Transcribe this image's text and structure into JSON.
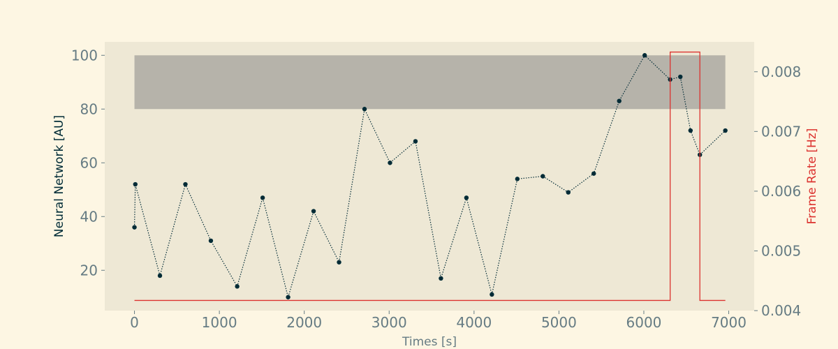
{
  "chart_data": {
    "type": "line",
    "title": "",
    "xlabel": "Times [s]",
    "ylabel_left": "Neural Network [AU]",
    "ylabel_right": "Frame Rate [Hz]",
    "xlim": [
      -350,
      7300
    ],
    "ylim_left": [
      5,
      105
    ],
    "ylim_right": [
      0.004,
      0.0085
    ],
    "x_ticks": [
      0,
      1000,
      2000,
      3000,
      4000,
      5000,
      6000,
      7000
    ],
    "x_tick_labels": [
      "0",
      "1000",
      "2000",
      "3000",
      "4000",
      "5000",
      "6000",
      "7000"
    ],
    "y_left_ticks": [
      20,
      40,
      60,
      80,
      100
    ],
    "y_left_tick_labels": [
      "20",
      "40",
      "60",
      "80",
      "100"
    ],
    "y_right_ticks": [
      0.004,
      0.005,
      0.006,
      0.007,
      0.008
    ],
    "y_right_tick_labels": [
      "0.004",
      "0.005",
      "0.006",
      "0.007",
      "0.008"
    ],
    "grid": false,
    "band": {
      "x_start": 0,
      "x_end": 6960,
      "y_start": 80,
      "y_end": 100,
      "color": "#b6b3aa"
    },
    "series": [
      {
        "axis": "left",
        "style": "dotted-with-markers",
        "color": "#002b36",
        "x": [
          0,
          10,
          300,
          600,
          900,
          1210,
          1510,
          1810,
          2110,
          2410,
          2710,
          3010,
          3310,
          3610,
          3910,
          4210,
          4510,
          4810,
          5110,
          5410,
          5710,
          6010,
          6310,
          6430,
          6550,
          6660,
          6960
        ],
        "values": [
          36,
          52,
          18,
          52,
          31,
          14,
          47,
          10,
          42,
          23,
          80,
          60,
          68,
          17,
          47,
          11,
          54,
          55,
          49,
          56,
          83,
          100,
          91,
          92,
          72,
          63,
          72
        ]
      },
      {
        "axis": "right",
        "style": "step",
        "color": "#dc322f",
        "x": [
          0,
          6310,
          6310,
          6660,
          6660,
          6960
        ],
        "values": [
          0.00417,
          0.00417,
          0.00833,
          0.00833,
          0.00417,
          0.00417
        ]
      }
    ],
    "colors": {
      "page_background": "#fdf6e3",
      "plot_background": "#eee8d5",
      "tick_text": "#657b83",
      "left_label": "#002b36",
      "right_label": "#dc322f"
    }
  }
}
